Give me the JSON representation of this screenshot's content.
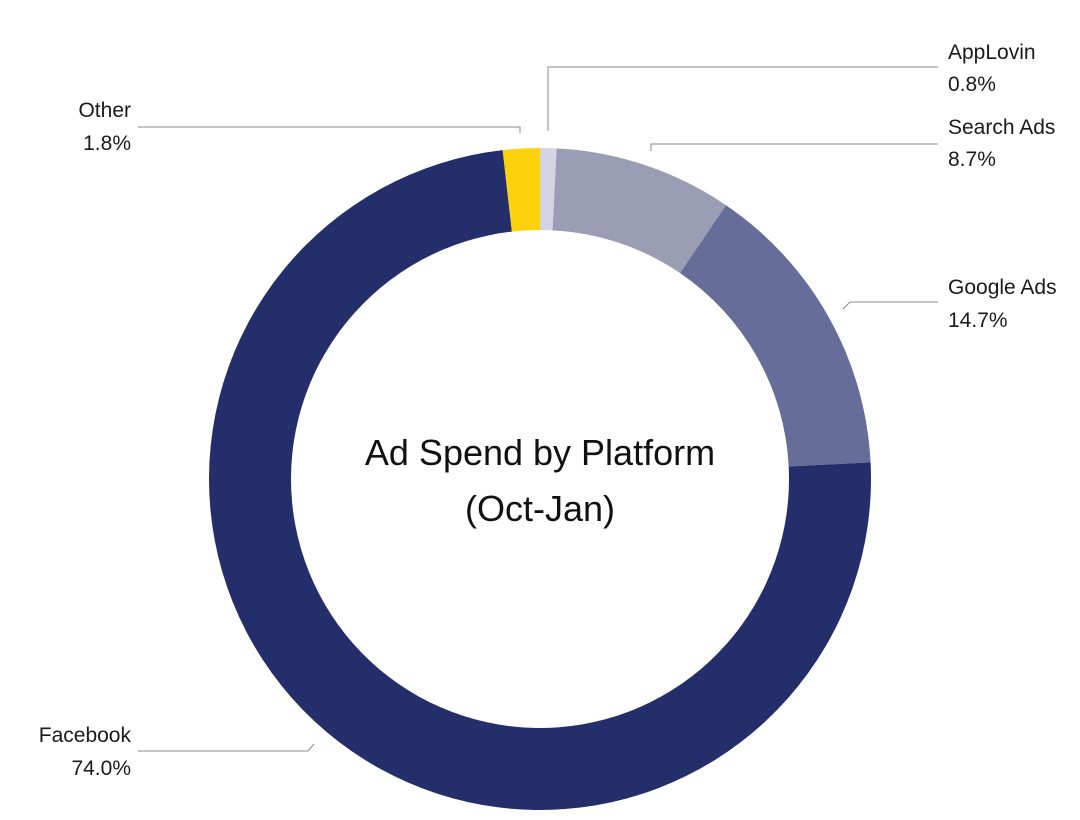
{
  "chart_data": {
    "type": "pie",
    "style": "donut",
    "title_lines": [
      "Ad Spend by Platform",
      "(Oct-Jan)"
    ],
    "slices": [
      {
        "label": "AppLovin",
        "value": 0.8,
        "display": "0.8%",
        "color": "#d3d5e4"
      },
      {
        "label": "Search Ads",
        "value": 8.7,
        "display": "8.7%",
        "color": "#9b9db4"
      },
      {
        "label": "Google Ads",
        "value": 14.7,
        "display": "14.7%",
        "color": "#666d99"
      },
      {
        "label": "Facebook",
        "value": 74.0,
        "display": "74.0%",
        "color": "#242e6b"
      },
      {
        "label": "Other",
        "value": 1.8,
        "display": "1.8%",
        "color": "#fcd20c"
      }
    ],
    "legend": "none",
    "label_style": "outside labels with leader lines"
  }
}
